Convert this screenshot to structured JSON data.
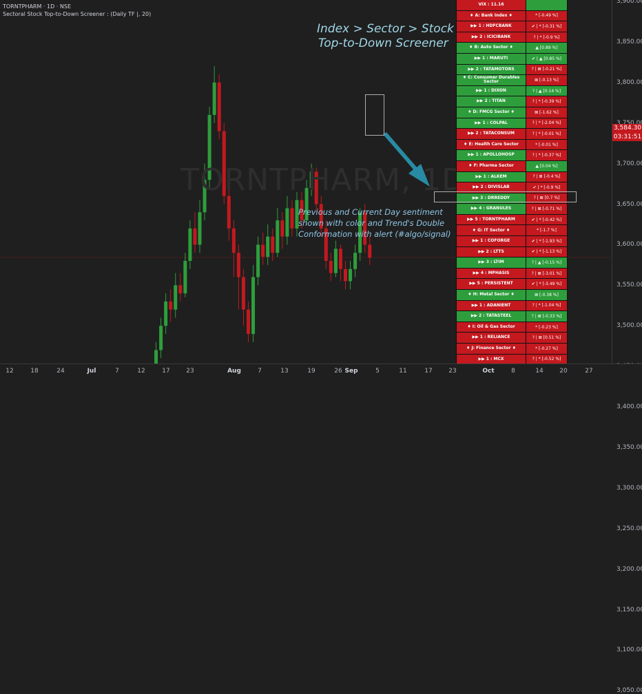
{
  "header": {
    "symbol_line": "TORNTPHARM · 1D · NSE",
    "indicator_line": "Sectoral Stock Top-to-Down Screener :  (Daily TF |, 20)"
  },
  "watermark": "TORNTPHARM, 1D",
  "annotations": {
    "title_line1": "Index > Sector > Stock",
    "title_line2": "Top-to-Down Screener",
    "body_line1": "Previous and Current Day sentiment",
    "body_line2": "shown with color and Trend's Double",
    "body_line3": "Conformation with alert (#algo/signal)"
  },
  "price_axis": {
    "ticks": [
      "3,900.00",
      "3,850.00",
      "3,800.00",
      "3,750.00",
      "3,700.00",
      "3,650.00",
      "3,600.00",
      "3,550.00",
      "3,500.00",
      "3,450.00",
      "3,400.00",
      "3,350.00",
      "3,300.00",
      "3,250.00",
      "3,200.00",
      "3,150.00",
      "3,100.00",
      "3,050.00"
    ],
    "last_price": "3,584.30",
    "countdown": "03:31:51",
    "last_price_color": "#c3191f"
  },
  "time_axis": {
    "ticks": [
      "12",
      "18",
      "24",
      "Jul",
      "7",
      "12",
      "17",
      "23",
      "Aug",
      "7",
      "13",
      "19",
      "26",
      "Sep",
      "5",
      "11",
      "17",
      "23",
      "Oct",
      "8",
      "14",
      "20",
      "27"
    ]
  },
  "colors": {
    "up": "#2e9e3c",
    "down": "#c3191f",
    "background": "#1f1f1f"
  },
  "screener": {
    "rows": [
      {
        "name": "VIX : 11.16",
        "status": "",
        "c1": "r",
        "c2": "g"
      },
      {
        "name": "♦ A: Bank Index ♦",
        "status": "* [-0.49 %]",
        "c1": "r",
        "c2": "r"
      },
      {
        "name": "▶▶ 1 : HDFCBANK",
        "status": "✔ | * [-0.31 %]",
        "c1": "r",
        "c2": "r"
      },
      {
        "name": "▶▶ 2 : ICICIBANK",
        "status": "? | * [-0.9 %]",
        "c1": "r",
        "c2": "r"
      },
      {
        "name": "♦ B: Auto Sector ♦",
        "status": "▲ [0.89 %]",
        "c1": "g",
        "c2": "g"
      },
      {
        "name": "▶▶ 1 : MARUTI",
        "status": "✔ | ▲ [0.85 %]",
        "c1": "g",
        "c2": "g"
      },
      {
        "name": "▶▶ 2 : TATAMOTORS",
        "status": "? | ⊠ [-0.21 %]",
        "c1": "g",
        "c2": "r"
      },
      {
        "name": "♦ C: Consumer Durables Sector",
        "status": "⊠ [-0.13 %]",
        "c1": "g",
        "c2": "r"
      },
      {
        "name": "▶▶ 1 : DIXON",
        "status": "? | ▲ [0.14 %]",
        "c1": "g",
        "c2": "g"
      },
      {
        "name": "▶▶ 2 : TITAN",
        "status": "? | * [-0.39 %]",
        "c1": "g",
        "c2": "r"
      },
      {
        "name": "♦ D: FMCG Sector ♦",
        "status": "⊠ [-1.62 %]",
        "c1": "g",
        "c2": "r"
      },
      {
        "name": "▶▶ 1 : COLPAL",
        "status": "? | * [-2.04 %]",
        "c1": "g",
        "c2": "r"
      },
      {
        "name": "▶▶ 2 : TATACONSUM",
        "status": "? | * [-0.01 %]",
        "c1": "r",
        "c2": "r"
      },
      {
        "name": "♦ E: Health Care Sector",
        "status": "* [-0.01 %]",
        "c1": "r",
        "c2": "r"
      },
      {
        "name": "▶▶ 1 : APOLLOHOSP",
        "status": "? | * [-0.37 %]",
        "c1": "g",
        "c2": "r"
      },
      {
        "name": "♦ F: Pharma Sector",
        "status": "▲ [0.04 %]",
        "c1": "r",
        "c2": "g"
      },
      {
        "name": "▶▶ 1 : ALKEM",
        "status": "? | ⊠ [-0.4 %]",
        "c1": "g",
        "c2": "r"
      },
      {
        "name": "▶▶ 2 : DIVISLAB",
        "status": "✔ | * [-0.9 %]",
        "c1": "r",
        "c2": "r"
      },
      {
        "name": "▶▶ 3 : DRREDDY",
        "status": "? | ⊠ [0.7 %]",
        "c1": "g",
        "c2": "r"
      },
      {
        "name": "▶▶ 4 : GRANULES",
        "status": "? | ⊠ [-0.71 %]",
        "c1": "g",
        "c2": "r"
      },
      {
        "name": "▶▶ 5 : TORNTPHARM",
        "status": "✔ | * [-0.42 %]",
        "c1": "r",
        "c2": "r"
      },
      {
        "name": "♦ G: IT Sector ♦",
        "status": "* [-1.7 %]",
        "c1": "r",
        "c2": "r"
      },
      {
        "name": "▶▶ 1 : COFORGE",
        "status": "✔ | * [-1.93 %]",
        "c1": "r",
        "c2": "r"
      },
      {
        "name": "▶▶ 2 : LTTS",
        "status": "✔ | * [-1.13 %]",
        "c1": "r",
        "c2": "r"
      },
      {
        "name": "▶▶ 3 : LTIM",
        "status": "? | ▲ [-0.15 %]",
        "c1": "g",
        "c2": "g"
      },
      {
        "name": "▶▶ 4 : MPHASIS",
        "status": "? | ⊠ [-3.01 %]",
        "c1": "r",
        "c2": "r"
      },
      {
        "name": "▶▶ 5 : PERSISTENT",
        "status": "✔ | * [-3.49 %]",
        "c1": "r",
        "c2": "r"
      },
      {
        "name": "♦ H: Metal Sector ♦",
        "status": "⊠ [-0.38 %]",
        "c1": "g",
        "c2": "g"
      },
      {
        "name": "▶▶ 1 : ADANIENT",
        "status": "? | * [-1.04 %]",
        "c1": "r",
        "c2": "r"
      },
      {
        "name": "▶▶ 2 : TATASTEEL",
        "status": "? | ⊠ [-0.33 %]",
        "c1": "g",
        "c2": "g"
      },
      {
        "name": "♦ I: Oil & Gas Sector",
        "status": "* [-0.23 %]",
        "c1": "r",
        "c2": "r"
      },
      {
        "name": "▶▶ 1 : RELIANCE",
        "status": "? | ⊠ [0.51 %]",
        "c1": "r",
        "c2": "r"
      },
      {
        "name": "♦ J: Finance Sector ♦",
        "status": "* [-0.27 %]",
        "c1": "r",
        "c2": "r"
      },
      {
        "name": "▶▶ 1 : MCX",
        "status": "? | * [-0.52 %]",
        "c1": "r",
        "c2": "r"
      }
    ]
  }
}
